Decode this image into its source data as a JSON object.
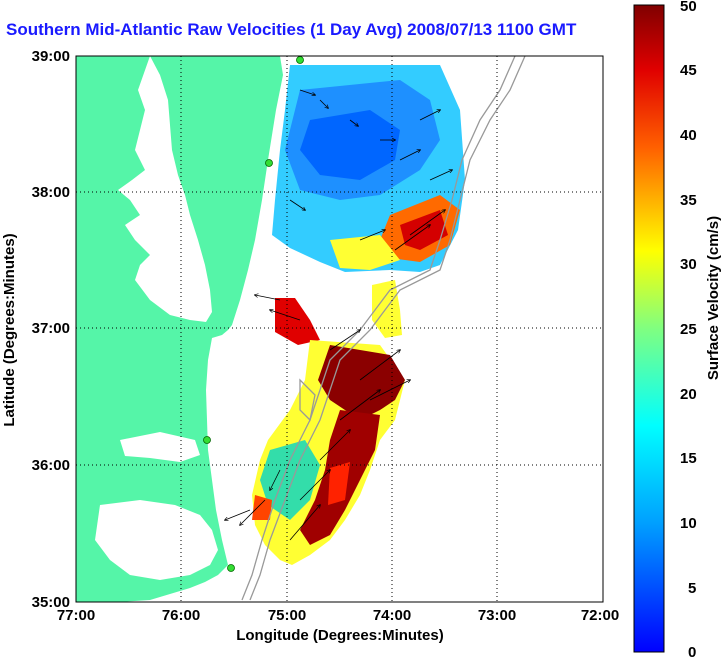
{
  "title": "Southern Mid-Atlantic Raw Velocities (1 Day Avg) 2008/07/13 1100 GMT",
  "map": {
    "x_axis_label": "Longitude (Degrees:Minutes)",
    "y_axis_label": "Latitude (Degrees:Minutes)",
    "x_ticks": [
      "77:00",
      "76:00",
      "75:00",
      "74:00",
      "73:00",
      "72:00"
    ],
    "y_ticks": [
      "39:00",
      "38:00",
      "37:00",
      "36:00",
      "35:00"
    ],
    "grid": "dotted",
    "colors": {
      "land": "#55f5a8",
      "water": "#ffffff",
      "bathymetry": "#999999",
      "station": "#33dd33"
    }
  },
  "colorbar": {
    "label": "Surface Velocity (cm/s)",
    "ticks": [
      "50",
      "45",
      "40",
      "35",
      "30",
      "25",
      "20",
      "15",
      "10",
      "5",
      "0"
    ],
    "min": 0,
    "max": 50,
    "colormap": "jet"
  }
}
